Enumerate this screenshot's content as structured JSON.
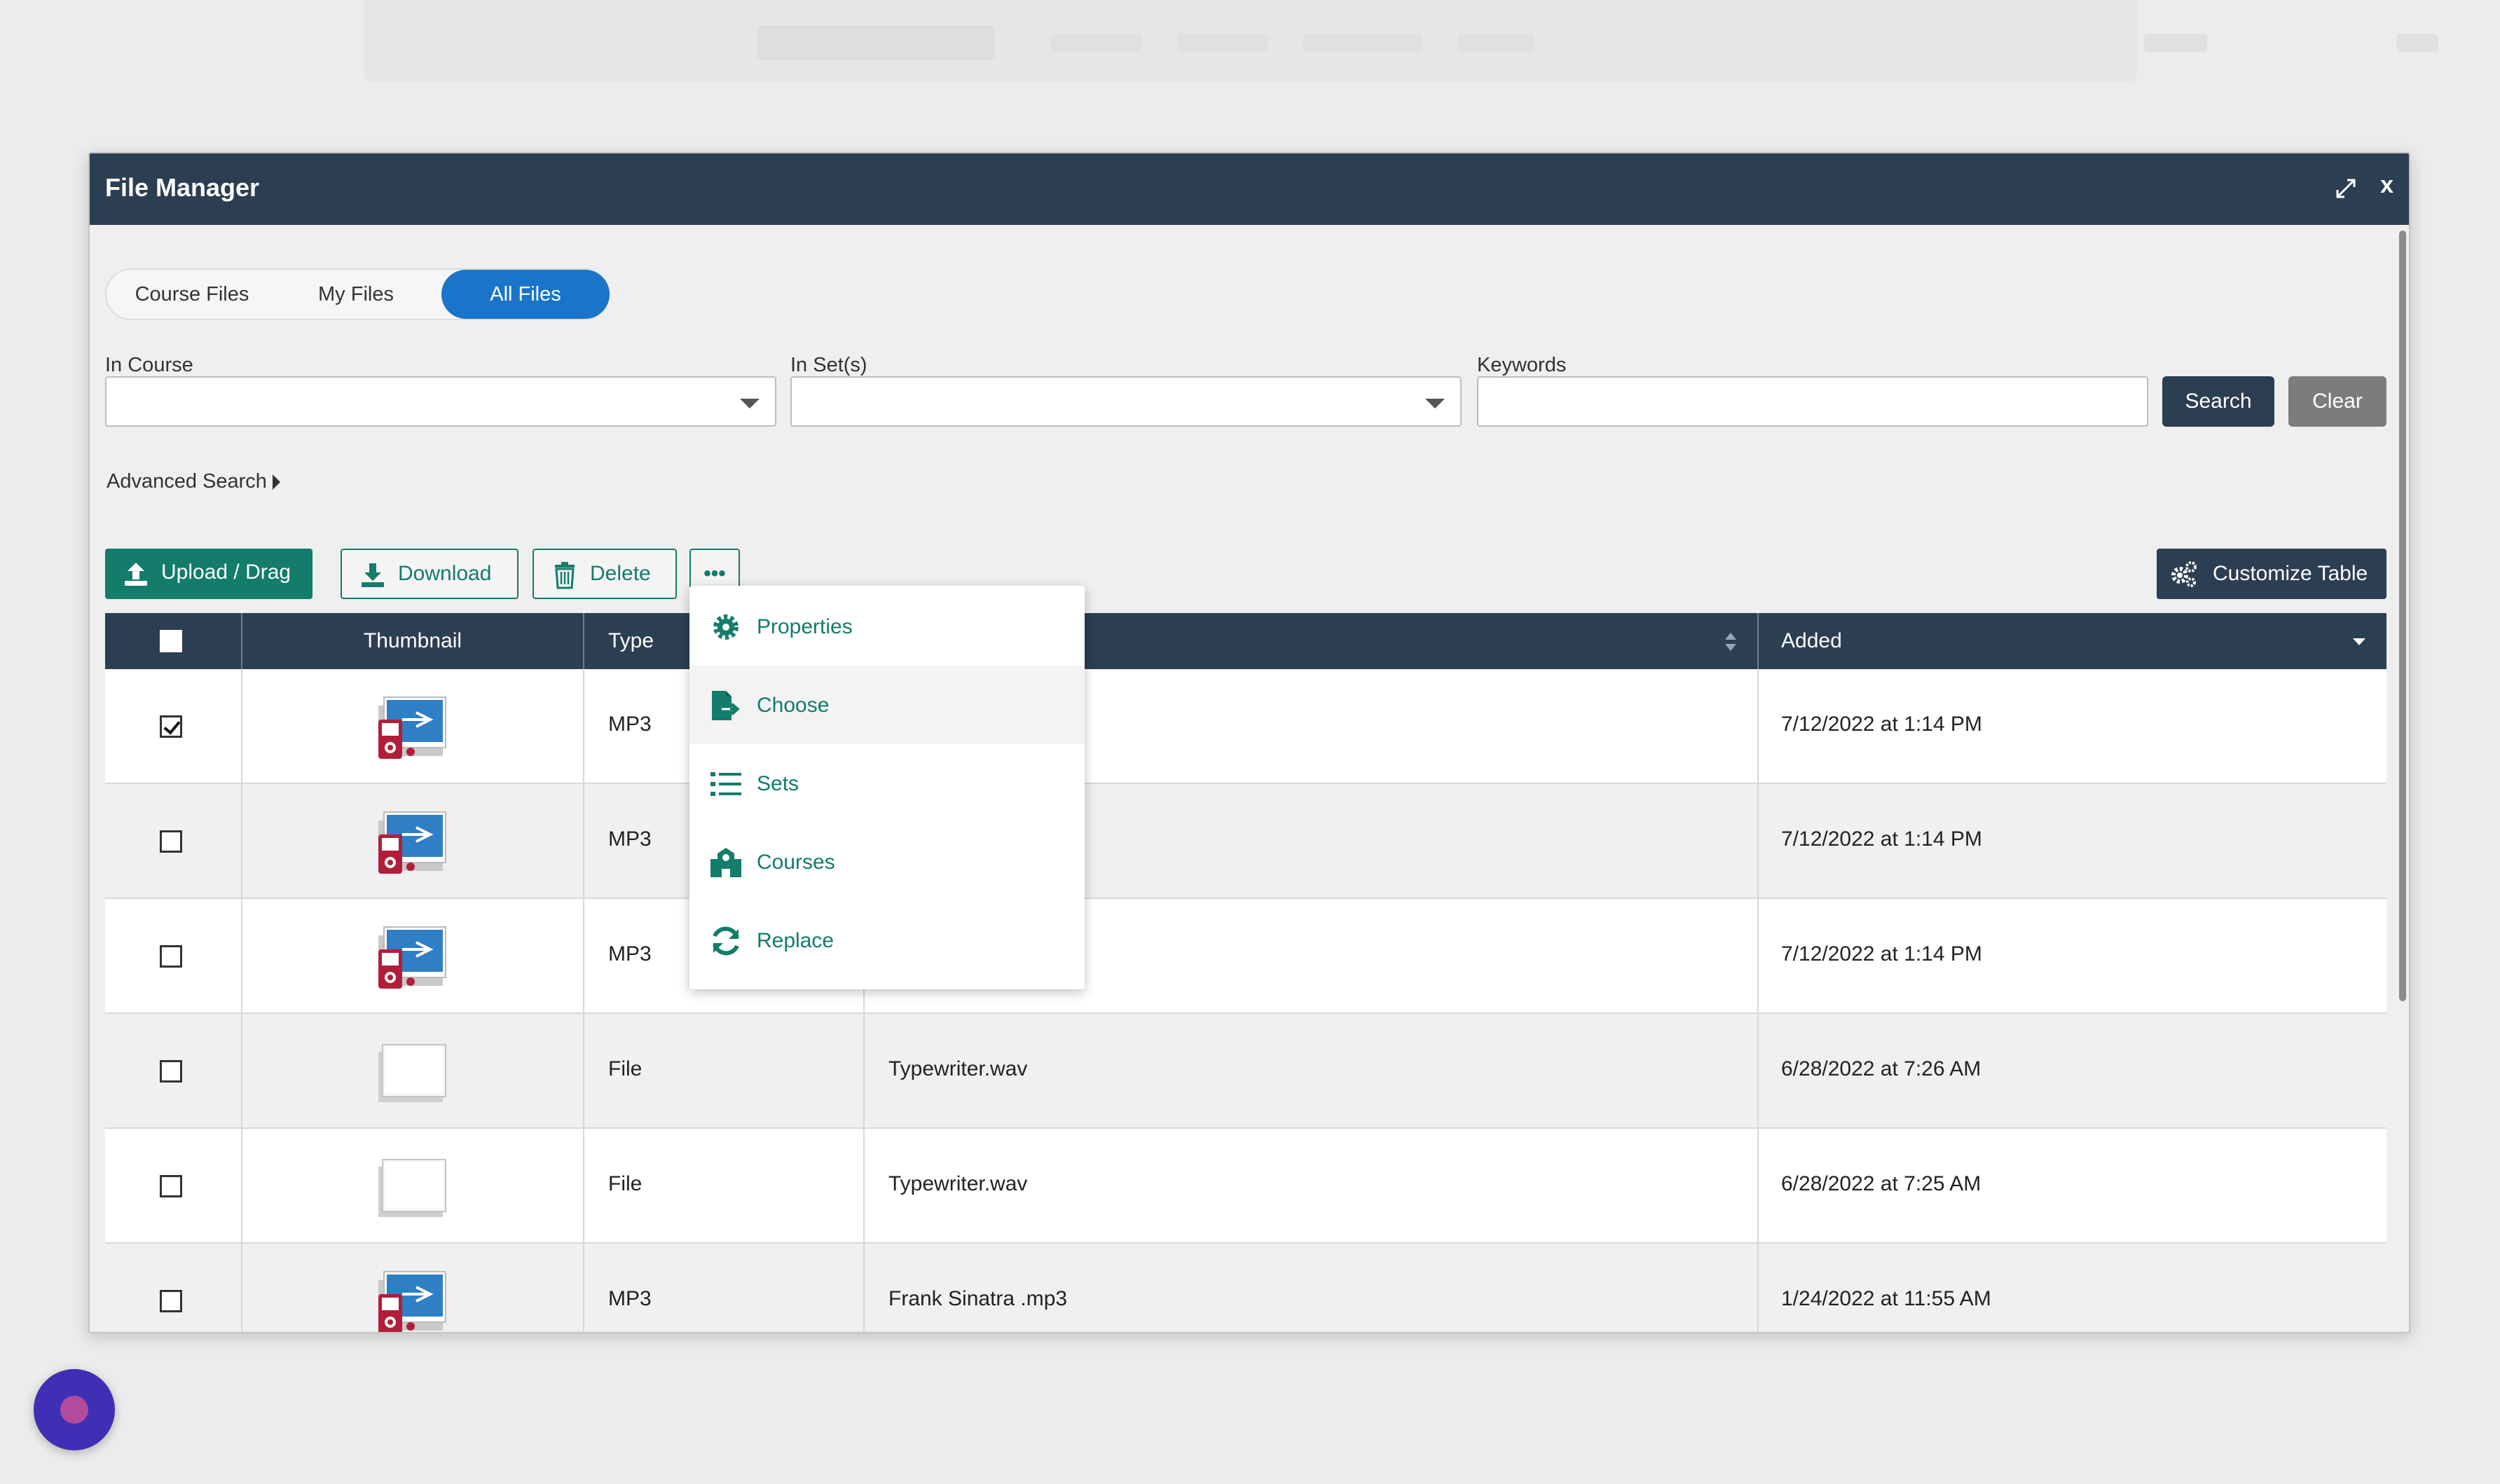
{
  "modal": {
    "title": "File Manager",
    "close_label": "x"
  },
  "tabs": [
    {
      "label": "Course Files"
    },
    {
      "label": "My Files"
    },
    {
      "label": "All Files"
    }
  ],
  "filters": {
    "in_course_label": "In Course",
    "in_sets_label": "In Set(s)",
    "keywords_label": "Keywords",
    "search_label": "Search",
    "clear_label": "Clear",
    "advanced_label": "Advanced Search"
  },
  "toolbar": {
    "upload_label": "Upload / Drag",
    "download_label": "Download",
    "delete_label": "Delete",
    "more_label": "•••",
    "customize_label": "Customize Table"
  },
  "table": {
    "headers": {
      "thumbnail": "Thumbnail",
      "type": "Type",
      "added": "Added"
    },
    "rows": [
      {
        "type": "MP3",
        "name": "",
        "added": "7/12/2022 at 1:14 PM",
        "checked": true,
        "thumb": "audio"
      },
      {
        "type": "MP3",
        "name": "",
        "added": "7/12/2022 at 1:14 PM",
        "checked": false,
        "thumb": "audio"
      },
      {
        "type": "MP3",
        "name": "",
        "added": "7/12/2022 at 1:14 PM",
        "checked": false,
        "thumb": "audio"
      },
      {
        "type": "File",
        "name": "Typewriter.wav",
        "added": "6/28/2022 at 7:26 AM",
        "checked": false,
        "thumb": "blank"
      },
      {
        "type": "File",
        "name": "Typewriter.wav",
        "added": "6/28/2022 at 7:25 AM",
        "checked": false,
        "thumb": "blank"
      },
      {
        "type": "MP3",
        "name": "Frank Sinatra .mp3",
        "added": "1/24/2022 at 11:55 AM",
        "checked": false,
        "thumb": "audio"
      }
    ]
  },
  "menu": [
    {
      "label": "Properties",
      "icon": "gear-icon"
    },
    {
      "label": "Choose",
      "icon": "file-export-icon"
    },
    {
      "label": "Sets",
      "icon": "list-icon"
    },
    {
      "label": "Courses",
      "icon": "school-icon"
    },
    {
      "label": "Replace",
      "icon": "refresh-icon"
    }
  ],
  "colors": {
    "header": "#2c3e52",
    "accent_green": "#137c6b",
    "active_tab": "#1a74c9",
    "fab": "#3f2fb4"
  }
}
